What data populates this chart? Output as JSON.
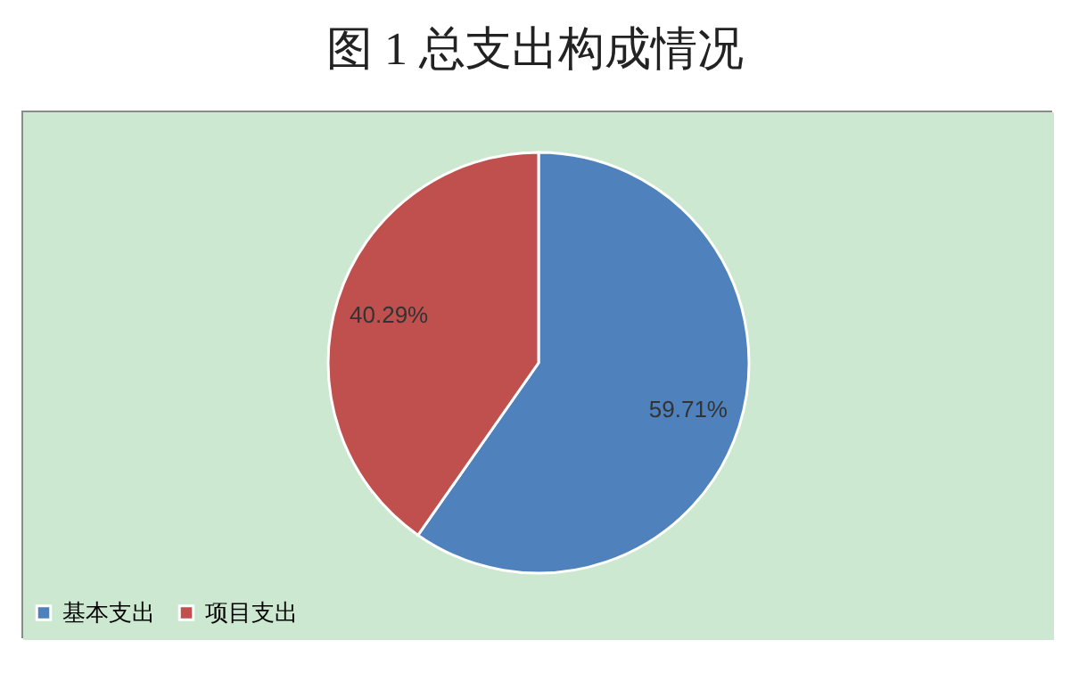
{
  "chart_data": {
    "type": "pie",
    "title": "图 1 总支出构成情况",
    "categories": [
      "基本支出",
      "项目支出"
    ],
    "values": [
      59.71,
      40.29
    ],
    "colors": [
      "#4f81bd",
      "#c0504d"
    ],
    "value_labels": [
      "59.71%",
      "40.29%"
    ],
    "legend": "bottom"
  }
}
